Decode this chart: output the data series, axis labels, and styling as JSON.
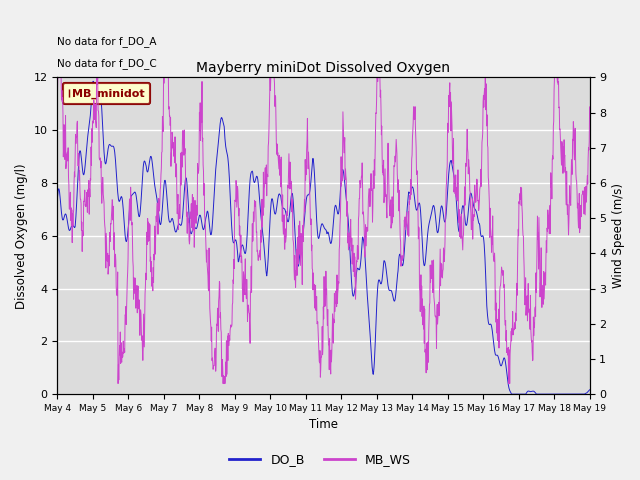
{
  "title": "Mayberry miniDot Dissolved Oxygen",
  "xlabel": "Time",
  "ylabel_left": "Dissolved Oxygen (mg/l)",
  "ylabel_right": "Wind Speed (m/s)",
  "annotation_lines": [
    "No data for f_DO_A",
    "No data for f_DO_C"
  ],
  "legend_box_label": "MB_minidot",
  "legend_entries": [
    "DO_B",
    "MB_WS"
  ],
  "do_b_color": "#2222cc",
  "mb_ws_color": "#cc44cc",
  "ylim_left": [
    0,
    12
  ],
  "ylim_right": [
    0,
    9
  ],
  "yticks_left": [
    0,
    2,
    4,
    6,
    8,
    10,
    12
  ],
  "yticks_right": [
    0.0,
    1.0,
    2.0,
    3.0,
    4.0,
    5.0,
    6.0,
    7.0,
    8.0,
    9.0
  ],
  "background_color": "#dcdcdc",
  "grid_color": "#ffffff",
  "fig_facecolor": "#f0f0f0"
}
